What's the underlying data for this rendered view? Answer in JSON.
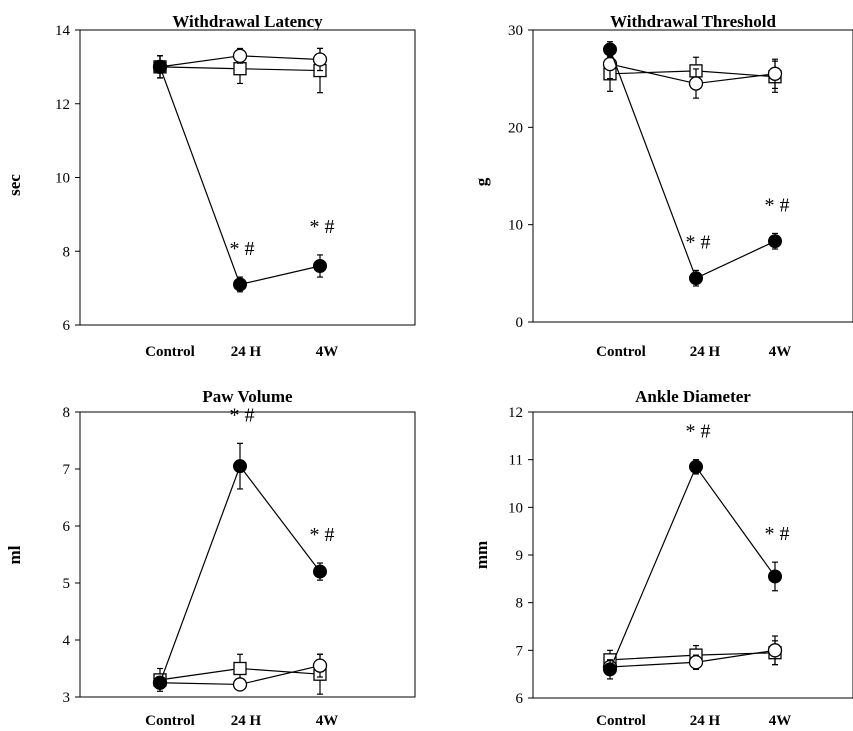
{
  "chart_data": [
    {
      "type": "line",
      "title": "Withdrawal Latency",
      "ylabel": "sec",
      "ylim": [
        6,
        14
      ],
      "yticks": [
        "6",
        "8",
        "10",
        "12",
        "14"
      ],
      "categories": [
        "Control",
        "24 H",
        "4W"
      ],
      "series": [
        {
          "marker": "filled-circle",
          "values": [
            13.0,
            7.1,
            7.6
          ],
          "errors": [
            0.3,
            0.2,
            0.3
          ],
          "annotations": [
            "",
            "* #",
            "* #"
          ]
        },
        {
          "marker": "open-circle",
          "values": [
            13.0,
            13.3,
            13.2
          ],
          "errors": [
            0.3,
            0.2,
            0.3
          ],
          "annotations": [
            "",
            "",
            ""
          ]
        },
        {
          "marker": "open-square",
          "values": [
            13.0,
            12.95,
            12.9
          ],
          "errors": [
            0.3,
            0.4,
            0.6
          ],
          "annotations": [
            "",
            "",
            ""
          ]
        }
      ]
    },
    {
      "type": "line",
      "title": "Withdrawal Threshold",
      "ylabel": "g",
      "ylim": [
        0,
        30
      ],
      "yticks": [
        "0",
        "10",
        "20",
        "30"
      ],
      "categories": [
        "Control",
        "24 H",
        "4W"
      ],
      "series": [
        {
          "marker": "filled-circle",
          "values": [
            28.0,
            4.5,
            8.3
          ],
          "errors": [
            0.8,
            0.8,
            0.8
          ],
          "annotations": [
            "",
            "* #",
            "* #"
          ]
        },
        {
          "marker": "open-circle",
          "values": [
            26.5,
            24.5,
            25.5
          ],
          "errors": [
            1.5,
            1.5,
            1.5
          ],
          "annotations": [
            "",
            "",
            ""
          ]
        },
        {
          "marker": "open-square",
          "values": [
            25.5,
            25.8,
            25.2
          ],
          "errors": [
            1.8,
            1.4,
            1.6
          ],
          "annotations": [
            "",
            "",
            ""
          ]
        }
      ]
    },
    {
      "type": "line",
      "title": "Paw Volume",
      "ylabel": "ml",
      "ylim": [
        3,
        8
      ],
      "yticks": [
        "3",
        "4",
        "5",
        "6",
        "7",
        "8"
      ],
      "categories": [
        "Control",
        "24 H",
        "4W"
      ],
      "series": [
        {
          "marker": "filled-circle",
          "values": [
            3.25,
            7.05,
            5.2
          ],
          "errors": [
            0.08,
            0.4,
            0.15
          ],
          "annotations": [
            "",
            "* #",
            "* #"
          ]
        },
        {
          "marker": "open-circle",
          "values": [
            3.25,
            3.22,
            3.55
          ],
          "errors": [
            0.1,
            0.05,
            0.2
          ],
          "annotations": [
            "",
            "",
            ""
          ]
        },
        {
          "marker": "open-square",
          "values": [
            3.3,
            3.5,
            3.4
          ],
          "errors": [
            0.2,
            0.25,
            0.35
          ],
          "annotations": [
            "",
            "",
            ""
          ]
        }
      ]
    },
    {
      "type": "line",
      "title": "Ankle Diameter",
      "ylabel": "mm",
      "ylim": [
        6,
        12
      ],
      "yticks": [
        "6",
        "7",
        "8",
        "9",
        "10",
        "11",
        "12"
      ],
      "categories": [
        "Control",
        "24 H",
        "4W"
      ],
      "series": [
        {
          "marker": "filled-circle",
          "values": [
            6.6,
            10.85,
            8.55
          ],
          "errors": [
            0.2,
            0.15,
            0.3
          ],
          "annotations": [
            "",
            "* #",
            "* #"
          ]
        },
        {
          "marker": "open-circle",
          "values": [
            6.65,
            6.75,
            7.0
          ],
          "errors": [
            0.15,
            0.15,
            0.3
          ],
          "annotations": [
            "",
            "",
            ""
          ]
        },
        {
          "marker": "open-square",
          "values": [
            6.8,
            6.9,
            6.95
          ],
          "errors": [
            0.2,
            0.2,
            0.25
          ],
          "annotations": [
            "",
            "",
            ""
          ]
        }
      ]
    }
  ]
}
